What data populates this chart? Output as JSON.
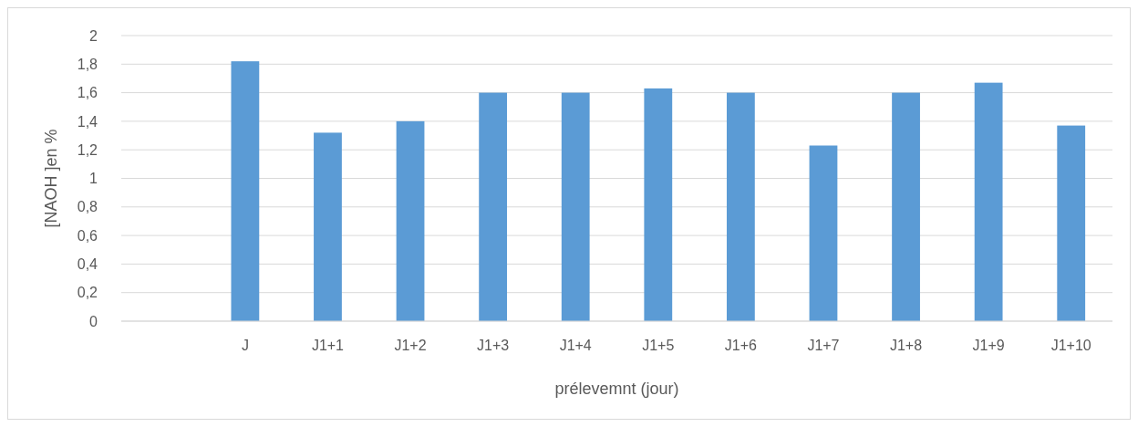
{
  "chart_data": {
    "type": "bar",
    "xlabel": "prélevemnt (jour)",
    "ylabel": "[NAOH ]en %",
    "categories": [
      null,
      "J",
      "J1+1",
      "J1+2",
      "J1+3",
      "J1+4",
      "J1+5",
      "J1+6",
      "J1+7",
      "J1+8",
      "J1+9",
      "J1+10"
    ],
    "values": [
      null,
      1.82,
      1.32,
      1.4,
      1.6,
      1.6,
      1.63,
      1.6,
      1.23,
      1.6,
      1.67,
      1.37
    ],
    "color": "#5b9bd5",
    "ylim": [
      0,
      2
    ],
    "yticks": [
      0,
      {
        "value": 0.2,
        "label": "0,2"
      },
      {
        "value": 0.4,
        "label": "0,4"
      },
      {
        "value": 0.6,
        "label": "0,6"
      },
      {
        "value": 0.8,
        "label": "0,8"
      },
      1,
      {
        "value": 1.2,
        "label": "1,2"
      },
      {
        "value": 1.4,
        "label": "1,4"
      },
      {
        "value": 1.6,
        "label": "1,6"
      },
      {
        "value": 1.8,
        "label": "1,8"
      },
      2
    ],
    "grid": "y"
  }
}
